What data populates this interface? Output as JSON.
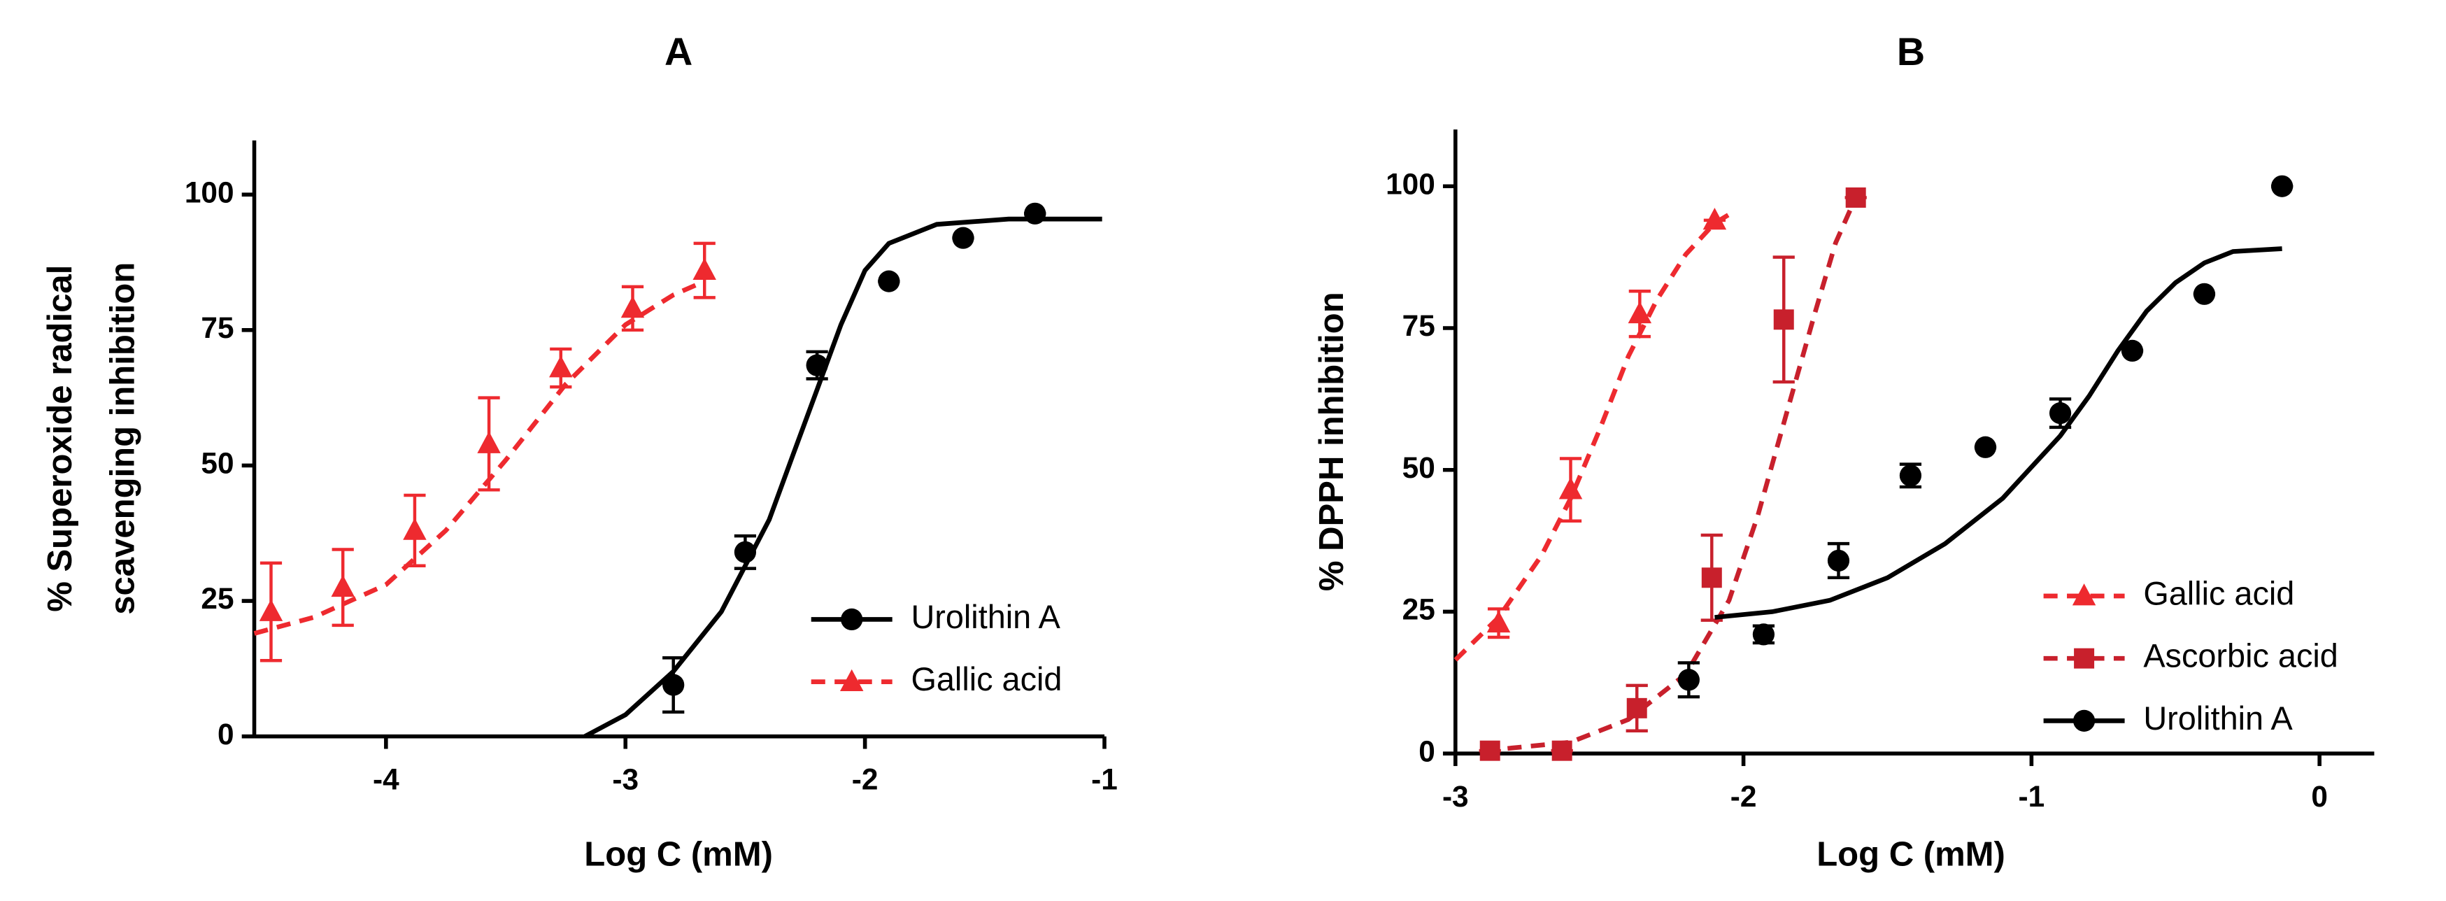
{
  "chart_data": [
    {
      "type": "line",
      "title": "A",
      "xlabel": "Log C (mM)",
      "ylabel": [
        "% Superoxide radical",
        "scavenging inhibition"
      ],
      "xlim": [
        -4.55,
        -1
      ],
      "ylim": [
        0,
        110
      ],
      "xticks": [
        -4,
        -3,
        -2,
        -1
      ],
      "yticks": [
        0,
        25,
        50,
        75,
        100
      ],
      "legend": "lower right",
      "series": [
        {
          "name": "Urolithin A",
          "color": "#000000",
          "marker": "circle",
          "dash": false,
          "x": [
            -2.8,
            -2.5,
            -2.2,
            -1.9,
            -1.59,
            -1.29
          ],
          "values": [
            9.5,
            34,
            68.5,
            84,
            92,
            96.5
          ],
          "errors": [
            5,
            3,
            2.5,
            0,
            0,
            0
          ],
          "fit_x": [
            -3.17,
            -3.0,
            -2.8,
            -2.6,
            -2.4,
            -2.3,
            -2.2,
            -2.1,
            -2.0,
            -1.9,
            -1.7,
            -1.4,
            -1.01
          ],
          "fit_values": [
            0,
            4,
            12,
            23,
            40,
            52,
            64,
            76,
            86,
            91,
            94.5,
            95.5,
            95.5
          ]
        },
        {
          "name": "Gallic acid",
          "color": "#ee2a2f",
          "marker": "triangle",
          "dash": true,
          "x": [
            -4.48,
            -4.18,
            -3.88,
            -3.57,
            -3.27,
            -2.97,
            -2.67
          ],
          "values": [
            23,
            27.5,
            38,
            54,
            68,
            79,
            86
          ],
          "errors": [
            9,
            7,
            6.5,
            8.5,
            3.5,
            4,
            5
          ],
          "fit_x": [
            -4.55,
            -4.3,
            -4.0,
            -3.75,
            -3.5,
            -3.25,
            -3.0,
            -2.8,
            -2.67
          ],
          "fit_values": [
            19,
            22,
            28,
            38,
            51,
            65,
            76,
            81.5,
            84
          ]
        }
      ]
    },
    {
      "type": "line",
      "title": "B",
      "xlabel": "Log C (mM)",
      "ylabel": [
        "% DPPH inhibition"
      ],
      "xlim": [
        -3,
        0.19
      ],
      "ylim": [
        0,
        110
      ],
      "xticks": [
        -3,
        -2,
        -1,
        0
      ],
      "yticks": [
        0,
        25,
        50,
        75,
        100
      ],
      "legend": "lower right",
      "series": [
        {
          "name": "Gallic acid",
          "color": "#ee2a2f",
          "marker": "triangle",
          "dash": true,
          "x": [
            -2.85,
            -2.6,
            -2.36,
            -2.1
          ],
          "values": [
            23,
            46.5,
            77.5,
            94
          ],
          "errors": [
            2.5,
            5.5,
            4,
            0
          ],
          "fit_x": [
            -3,
            -2.85,
            -2.7,
            -2.6,
            -2.5,
            -2.4,
            -2.3,
            -2.2,
            -2.1,
            -2.05
          ],
          "fit_values": [
            16.5,
            24,
            35,
            45,
            57,
            70,
            80,
            88,
            93.5,
            95
          ]
        },
        {
          "name": "Ascorbic acid",
          "color": "#c8202c",
          "marker": "square",
          "dash": true,
          "x": [
            -2.88,
            -2.63,
            -2.37,
            -2.11,
            -1.86,
            -1.61
          ],
          "values": [
            0.5,
            0.5,
            8,
            31,
            76.5,
            98
          ],
          "errors": [
            0,
            0,
            4,
            7.5,
            11,
            0
          ],
          "fit_x": [
            -2.9,
            -2.6,
            -2.4,
            -2.2,
            -2.05,
            -1.95,
            -1.85,
            -1.75,
            -1.68,
            -1.61
          ],
          "fit_values": [
            0.5,
            2,
            6,
            14,
            27,
            42,
            60,
            78,
            90,
            98
          ]
        },
        {
          "name": "Urolithin A",
          "color": "#000000",
          "marker": "circle",
          "dash": false,
          "x": [
            -2.19,
            -1.93,
            -1.67,
            -1.42,
            -1.16,
            -0.9,
            -0.65,
            -0.4,
            -0.13
          ],
          "values": [
            13,
            21,
            34,
            49,
            54,
            60,
            71,
            81,
            100
          ],
          "errors": [
            3,
            1.5,
            3,
            2,
            0,
            2.5,
            0,
            0,
            0
          ],
          "fit_x": [
            -2.1,
            -1.9,
            -1.7,
            -1.5,
            -1.3,
            -1.1,
            -0.9,
            -0.8,
            -0.7,
            -0.6,
            -0.5,
            -0.4,
            -0.3,
            -0.13
          ],
          "fit_values": [
            24,
            25,
            27,
            31,
            37,
            45,
            56,
            63,
            71,
            78,
            83,
            86.5,
            88.5,
            89
          ]
        }
      ]
    }
  ]
}
